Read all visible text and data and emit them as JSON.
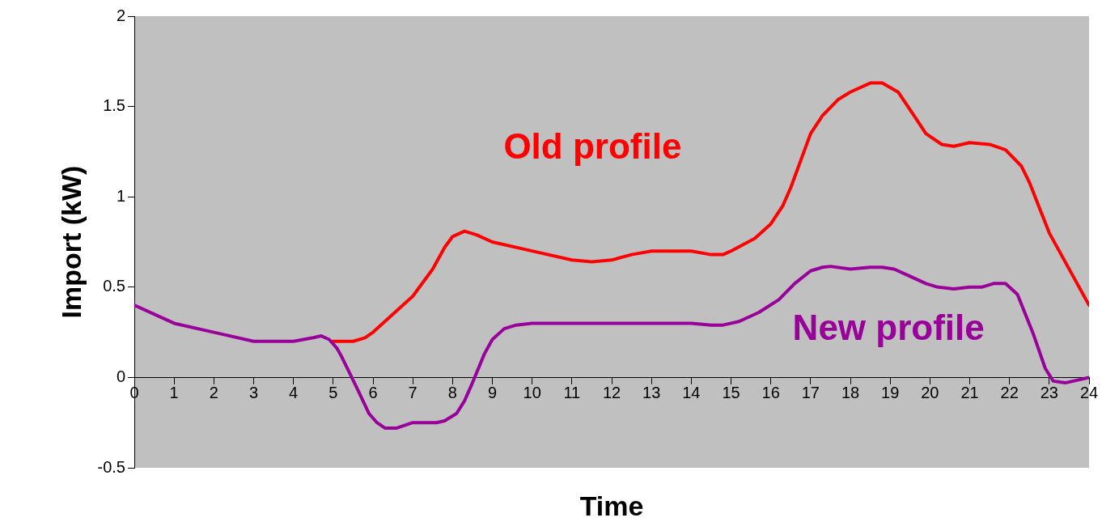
{
  "chart_data": {
    "type": "line",
    "xlabel": "Time",
    "ylabel": "Import (kW)",
    "xlim": [
      0,
      24
    ],
    "xticks": [
      0,
      1,
      2,
      3,
      4,
      5,
      6,
      7,
      8,
      9,
      10,
      11,
      12,
      13,
      14,
      15,
      16,
      17,
      18,
      19,
      20,
      21,
      22,
      23,
      24
    ],
    "ylim": [
      -0.5,
      2
    ],
    "yticks": [
      -0.5,
      0,
      0.5,
      1,
      1.5,
      2
    ],
    "grid": false,
    "legend": false,
    "marker": "none",
    "line_style": "solid",
    "series": [
      {
        "name": "Old profile",
        "color": "#ff0000",
        "x": [
          5,
          5.5,
          5.8,
          6,
          6.5,
          7,
          7.5,
          7.8,
          8,
          8.3,
          8.6,
          9,
          10,
          11,
          11.5,
          12,
          12.5,
          13,
          14,
          14.5,
          14.8,
          15,
          15.6,
          16,
          16.3,
          16.5,
          17,
          17.3,
          17.7,
          18,
          18.5,
          18.8,
          19.2,
          19.6,
          19.9,
          20.3,
          20.6,
          21,
          21.5,
          21.9,
          22.3,
          22.5,
          23,
          24
        ],
        "values": [
          0.2,
          0.2,
          0.22,
          0.25,
          0.35,
          0.45,
          0.6,
          0.72,
          0.78,
          0.81,
          0.79,
          0.75,
          0.7,
          0.65,
          0.64,
          0.65,
          0.68,
          0.7,
          0.7,
          0.68,
          0.68,
          0.7,
          0.77,
          0.85,
          0.95,
          1.05,
          1.35,
          1.45,
          1.54,
          1.58,
          1.63,
          1.63,
          1.58,
          1.45,
          1.35,
          1.29,
          1.28,
          1.3,
          1.29,
          1.26,
          1.17,
          1.08,
          0.8,
          0.4
        ]
      },
      {
        "name": "New profile",
        "color": "#990099",
        "x": [
          0,
          1,
          2,
          3,
          4,
          4.5,
          4.7,
          4.9,
          5.1,
          5.2,
          5.4,
          5.6,
          5.9,
          6.1,
          6.3,
          6.6,
          7,
          7.6,
          7.8,
          8.1,
          8.3,
          8.5,
          8.8,
          9,
          9.3,
          9.6,
          10,
          14,
          14.5,
          14.8,
          15.2,
          15.7,
          16.2,
          16.6,
          17,
          17.3,
          17.5,
          18,
          18.5,
          18.8,
          19.1,
          19.5,
          19.9,
          20.2,
          20.6,
          21,
          21.3,
          21.6,
          21.9,
          22.2,
          22.4,
          22.6,
          22.9,
          23.1,
          23.4,
          24
        ],
        "values": [
          0.4,
          0.3,
          0.25,
          0.2,
          0.2,
          0.22,
          0.23,
          0.21,
          0.16,
          0.12,
          0.03,
          -0.06,
          -0.2,
          -0.25,
          -0.28,
          -0.28,
          -0.25,
          -0.25,
          -0.24,
          -0.2,
          -0.13,
          -0.03,
          0.13,
          0.21,
          0.27,
          0.29,
          0.3,
          0.3,
          0.29,
          0.29,
          0.31,
          0.36,
          0.43,
          0.52,
          0.59,
          0.61,
          0.615,
          0.6,
          0.61,
          0.61,
          0.6,
          0.56,
          0.52,
          0.5,
          0.49,
          0.5,
          0.5,
          0.52,
          0.52,
          0.46,
          0.35,
          0.24,
          0.05,
          -0.02,
          -0.03,
          0
        ]
      }
    ]
  }
}
